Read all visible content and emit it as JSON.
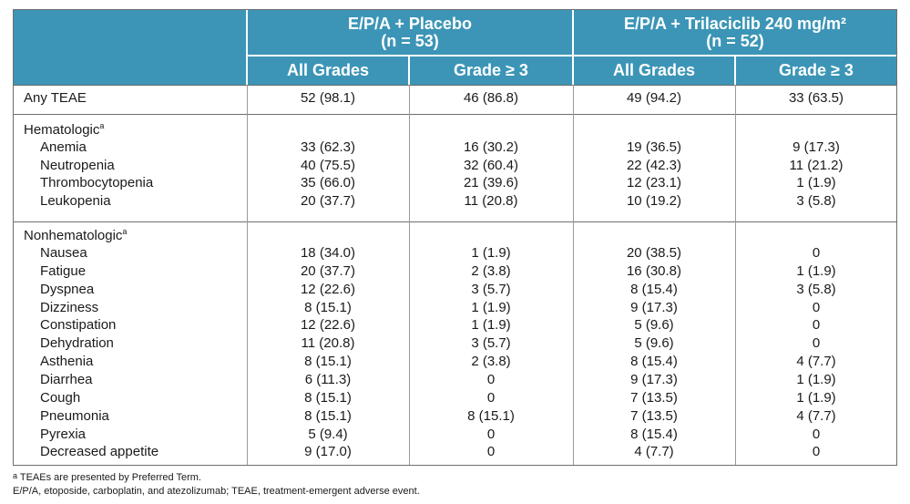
{
  "header": {
    "group1": {
      "line1": "E/P/A + Placebo",
      "line2": "(n = 53)"
    },
    "group2": {
      "line1": "E/P/A + Trilaciclib 240 mg/m²",
      "line2": "(n = 52)"
    },
    "subheaders": [
      "All Grades",
      "Grade ≥ 3",
      "All Grades",
      "Grade ≥ 3"
    ]
  },
  "any_teae": {
    "label": "Any TEAE",
    "values": [
      "52 (98.1)",
      "46 (86.8)",
      "49 (94.2)",
      "33 (63.5)"
    ]
  },
  "hematologic": {
    "title": "Hematologic",
    "sup": "a",
    "rows": [
      {
        "label": "Anemia",
        "values": [
          "33 (62.3)",
          "16 (30.2)",
          "19 (36.5)",
          "9 (17.3)"
        ]
      },
      {
        "label": "Neutropenia",
        "values": [
          "40 (75.5)",
          "32 (60.4)",
          "22 (42.3)",
          "11 (21.2)"
        ]
      },
      {
        "label": "Thrombocytopenia",
        "values": [
          "35 (66.0)",
          "21 (39.6)",
          "12 (23.1)",
          "1 (1.9)"
        ]
      },
      {
        "label": "Leukopenia",
        "values": [
          "20 (37.7)",
          "11 (20.8)",
          "10 (19.2)",
          "3 (5.8)"
        ]
      }
    ]
  },
  "nonhematologic": {
    "title": "Nonhematologic",
    "sup": "a",
    "rows": [
      {
        "label": "Nausea",
        "values": [
          "18 (34.0)",
          "1 (1.9)",
          "20 (38.5)",
          "0"
        ]
      },
      {
        "label": "Fatigue",
        "values": [
          "20 (37.7)",
          "2 (3.8)",
          "16 (30.8)",
          "1 (1.9)"
        ]
      },
      {
        "label": "Dyspnea",
        "values": [
          "12 (22.6)",
          "3 (5.7)",
          "8 (15.4)",
          "3 (5.8)"
        ]
      },
      {
        "label": "Dizziness",
        "values": [
          "8 (15.1)",
          "1 (1.9)",
          "9 (17.3)",
          "0"
        ]
      },
      {
        "label": "Constipation",
        "values": [
          "12 (22.6)",
          "1 (1.9)",
          "5 (9.6)",
          "0"
        ]
      },
      {
        "label": "Dehydration",
        "values": [
          "11 (20.8)",
          "3 (5.7)",
          "5 (9.6)",
          "0"
        ]
      },
      {
        "label": "Asthenia",
        "values": [
          "8 (15.1)",
          "2 (3.8)",
          "8 (15.4)",
          "4 (7.7)"
        ]
      },
      {
        "label": "Diarrhea",
        "values": [
          "6 (11.3)",
          "0",
          "9 (17.3)",
          "1 (1.9)"
        ]
      },
      {
        "label": "Cough",
        "values": [
          "8 (15.1)",
          "0",
          "7 (13.5)",
          "1 (1.9)"
        ]
      },
      {
        "label": "Pneumonia",
        "values": [
          "8 (15.1)",
          "8 (15.1)",
          "7 (13.5)",
          "4 (7.7)"
        ]
      },
      {
        "label": "Pyrexia",
        "values": [
          "5 (9.4)",
          "0",
          "8 (15.4)",
          "0"
        ]
      },
      {
        "label": "Decreased appetite",
        "values": [
          "9 (17.0)",
          "0",
          "4 (7.7)",
          "0"
        ]
      }
    ]
  },
  "footnotes": {
    "note_sup": "a",
    "note1": "TEAEs are presented by Preferred Term.",
    "note2": "E/P/A, etoposide, carboplatin, and atezolizumab; TEAE, treatment-emergent adverse event."
  },
  "colors": {
    "header_bg": "#3c95b6",
    "header_text": "#ffffff",
    "border": "#6e6e6e"
  }
}
